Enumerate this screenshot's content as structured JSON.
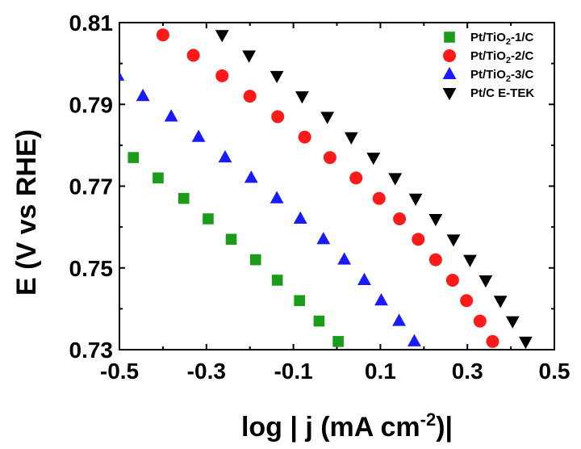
{
  "chart_data": {
    "type": "scatter",
    "xlabel": "log | j (mA cm-2)|",
    "ylabel": "E (V vs RHE)",
    "xlim": [
      -0.5,
      0.5
    ],
    "ylim": [
      0.73,
      0.81
    ],
    "xticks": [
      "-0.5",
      "-0.3",
      "-0.1",
      "0.1",
      "0.3",
      "0.5"
    ],
    "xtick_values": [
      -0.5,
      -0.3,
      -0.1,
      0.1,
      0.3,
      0.5
    ],
    "yticks": [
      "0.73",
      "0.75",
      "0.77",
      "0.79",
      "0.81"
    ],
    "ytick_values": [
      0.73,
      0.75,
      0.77,
      0.79,
      0.81
    ],
    "grid": false,
    "legend_position": "top-right",
    "series": [
      {
        "name": "Pt/TiO2-1/C",
        "marker": "square",
        "color": "#1a9c1a",
        "points": [
          [
            -0.468,
            0.777
          ],
          [
            -0.411,
            0.772
          ],
          [
            -0.352,
            0.767
          ],
          [
            -0.296,
            0.762
          ],
          [
            -0.243,
            0.757
          ],
          [
            -0.187,
            0.752
          ],
          [
            -0.137,
            0.747
          ],
          [
            -0.086,
            0.742
          ],
          [
            -0.041,
            0.737
          ],
          [
            0.003,
            0.732
          ]
        ]
      },
      {
        "name": "Pt/TiO2-2/C",
        "marker": "circle",
        "color": "#ff1a1a",
        "points": [
          [
            -0.4,
            0.807
          ],
          [
            -0.33,
            0.802
          ],
          [
            -0.264,
            0.797
          ],
          [
            -0.2,
            0.792
          ],
          [
            -0.136,
            0.787
          ],
          [
            -0.074,
            0.782
          ],
          [
            -0.016,
            0.777
          ],
          [
            0.044,
            0.772
          ],
          [
            0.097,
            0.767
          ],
          [
            0.144,
            0.762
          ],
          [
            0.187,
            0.757
          ],
          [
            0.227,
            0.752
          ],
          [
            0.266,
            0.747
          ],
          [
            0.298,
            0.742
          ],
          [
            0.329,
            0.737
          ],
          [
            0.358,
            0.732
          ]
        ]
      },
      {
        "name": "Pt/TiO2-3/C",
        "marker": "triangle-up",
        "color": "#1a1aff",
        "points": [
          [
            -0.504,
            0.797
          ],
          [
            -0.446,
            0.792
          ],
          [
            -0.381,
            0.787
          ],
          [
            -0.318,
            0.782
          ],
          [
            -0.257,
            0.777
          ],
          [
            -0.197,
            0.772
          ],
          [
            -0.138,
            0.767
          ],
          [
            -0.084,
            0.762
          ],
          [
            -0.031,
            0.757
          ],
          [
            0.017,
            0.752
          ],
          [
            0.063,
            0.747
          ],
          [
            0.102,
            0.742
          ],
          [
            0.143,
            0.737
          ],
          [
            0.178,
            0.732
          ]
        ]
      },
      {
        "name": "Pt/C E-TEK",
        "marker": "triangle-down",
        "color": "#000000",
        "points": [
          [
            -0.264,
            0.807
          ],
          [
            -0.202,
            0.802
          ],
          [
            -0.138,
            0.797
          ],
          [
            -0.08,
            0.792
          ],
          [
            -0.022,
            0.787
          ],
          [
            0.033,
            0.782
          ],
          [
            0.084,
            0.777
          ],
          [
            0.134,
            0.772
          ],
          [
            0.181,
            0.767
          ],
          [
            0.227,
            0.762
          ],
          [
            0.268,
            0.757
          ],
          [
            0.306,
            0.752
          ],
          [
            0.342,
            0.747
          ],
          [
            0.376,
            0.742
          ],
          [
            0.404,
            0.737
          ],
          [
            0.434,
            0.732
          ]
        ]
      }
    ],
    "legend": [
      {
        "prefix": "Pt/TiO",
        "sub": "2",
        "suffix": "-1/C"
      },
      {
        "prefix": "Pt/TiO",
        "sub": "2",
        "suffix": "-2/C"
      },
      {
        "prefix": "Pt/TiO",
        "sub": "2",
        "suffix": "-3/C"
      },
      {
        "prefix": "Pt/C E-TEK",
        "sub": "",
        "suffix": ""
      }
    ]
  }
}
